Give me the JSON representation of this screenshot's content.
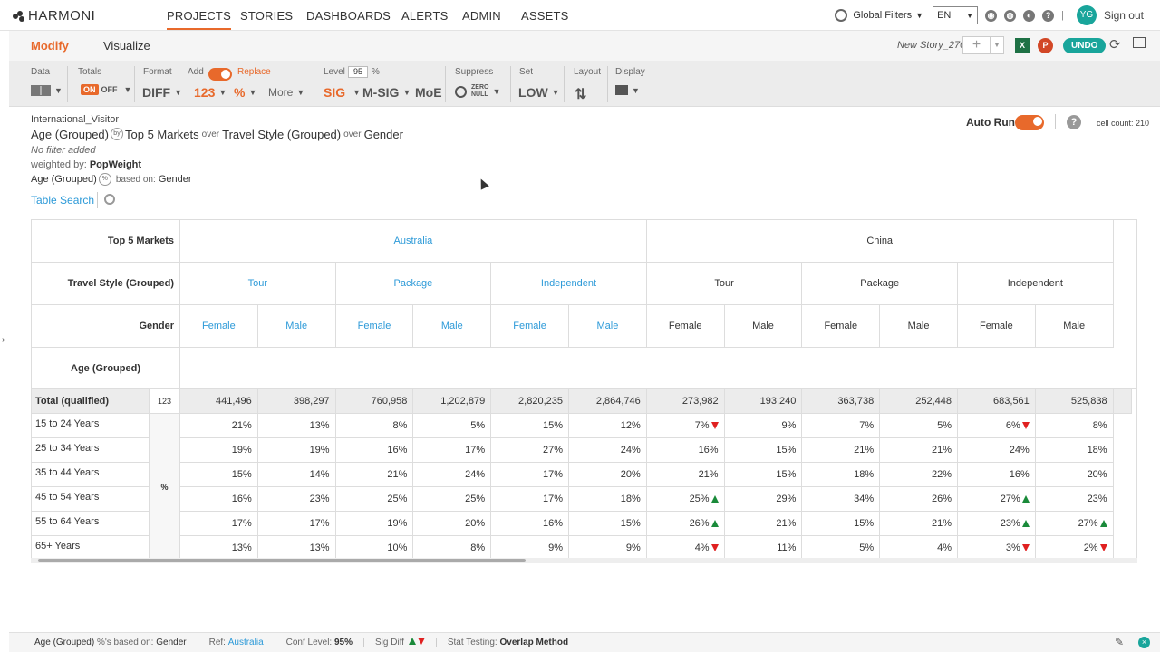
{
  "nav": {
    "brand": "HARMONI",
    "items": [
      "PROJECTS",
      "STORIES",
      "DASHBOARDS",
      "ALERTS",
      "ADMIN",
      "ASSETS"
    ],
    "global_filters": "Global Filters",
    "language": "EN",
    "user_initials": "YG",
    "sign_out": "Sign out"
  },
  "subbar": {
    "tabs": [
      "Modify",
      "Visualize"
    ],
    "story_name": "New Story_270",
    "undo": "UNDO"
  },
  "toolbar": {
    "data": "Data",
    "totals": "Totals",
    "on": "ON",
    "off": "OFF",
    "format": "Format",
    "add": "Add",
    "replace": "Replace",
    "diff": "DIFF",
    "num": "123",
    "pct": "%",
    "more": "More",
    "level": "Level",
    "level_value": "95",
    "level_unit": "%",
    "sig": "SIG",
    "msig": "M-SIG",
    "moe": "MoE",
    "suppress": "Suppress",
    "zero": "ZERO",
    "null": "NULL",
    "set": "Set",
    "low": "LOW",
    "layout": "Layout",
    "display": "Display"
  },
  "info": {
    "dataset": "International_Visitor",
    "row_var": "Age (Grouped)",
    "col1": "Top 5 Markets",
    "over": "over",
    "col2": "Travel Style (Grouped)",
    "col3": "Gender",
    "no_filter": "No filter added",
    "weighted_label": "weighted by:",
    "weight": "PopWeight",
    "based_row": "Age (Grouped)",
    "based_label": "based on:",
    "based_on": "Gender",
    "table_search": "Table Search",
    "auto_run": "Auto Run",
    "cell_count": "cell count: 210",
    "by_icon": "by",
    "pct_icon": "%"
  },
  "table": {
    "hdr_markets": "Top 5 Markets",
    "hdr_travel": "Travel Style (Grouped)",
    "hdr_gender": "Gender",
    "hdr_age": "Age (Grouped)",
    "markets": [
      "Australia",
      "China"
    ],
    "styles": [
      "Tour",
      "Package",
      "Independent",
      "Tour",
      "Package",
      "Independent"
    ],
    "genders": [
      "Female",
      "Male",
      "Female",
      "Male",
      "Female",
      "Male",
      "Female",
      "Male",
      "Female",
      "Male",
      "Female",
      "Male"
    ],
    "total_label": "Total (qualified)",
    "total_code": "123",
    "pct_label": "%",
    "totals": [
      "441,496",
      "398,297",
      "760,958",
      "1,202,879",
      "2,820,235",
      "2,864,746",
      "273,982",
      "193,240",
      "363,738",
      "252,448",
      "683,561",
      "525,838"
    ],
    "rows": [
      {
        "label": "15 to 24 Years",
        "values": [
          "21%",
          "13%",
          "8%",
          "5%",
          "15%",
          "12%",
          "7%",
          "9%",
          "7%",
          "5%",
          "6%",
          "8%"
        ],
        "sig": [
          "",
          "",
          "",
          "",
          "",
          "",
          "down",
          "",
          "",
          "",
          "down",
          ""
        ]
      },
      {
        "label": "25 to 34 Years",
        "values": [
          "19%",
          "19%",
          "16%",
          "17%",
          "27%",
          "24%",
          "16%",
          "15%",
          "21%",
          "21%",
          "24%",
          "18%"
        ],
        "sig": [
          "",
          "",
          "",
          "",
          "",
          "",
          "",
          "",
          "",
          "",
          "",
          ""
        ]
      },
      {
        "label": "35 to 44 Years",
        "values": [
          "15%",
          "14%",
          "21%",
          "24%",
          "17%",
          "20%",
          "21%",
          "15%",
          "18%",
          "22%",
          "16%",
          "20%"
        ],
        "sig": [
          "",
          "",
          "",
          "",
          "",
          "",
          "",
          "",
          "",
          "",
          "",
          ""
        ]
      },
      {
        "label": "45 to 54 Years",
        "values": [
          "16%",
          "23%",
          "25%",
          "25%",
          "17%",
          "18%",
          "25%",
          "29%",
          "34%",
          "26%",
          "27%",
          "23%"
        ],
        "sig": [
          "",
          "",
          "",
          "",
          "",
          "",
          "up",
          "",
          "",
          "",
          "up",
          ""
        ]
      },
      {
        "label": "55 to 64 Years",
        "values": [
          "17%",
          "17%",
          "19%",
          "20%",
          "16%",
          "15%",
          "26%",
          "21%",
          "15%",
          "21%",
          "23%",
          "27%"
        ],
        "sig": [
          "",
          "",
          "",
          "",
          "",
          "",
          "up",
          "",
          "",
          "",
          "up",
          "up"
        ]
      },
      {
        "label": "65+ Years",
        "values": [
          "13%",
          "13%",
          "10%",
          "8%",
          "9%",
          "9%",
          "4%",
          "11%",
          "5%",
          "4%",
          "3%",
          "2%"
        ],
        "sig": [
          "",
          "",
          "",
          "",
          "",
          "",
          "down",
          "",
          "",
          "",
          "down",
          "down"
        ]
      }
    ]
  },
  "footer": {
    "row": "Age (Grouped)",
    "based": "%'s based on:",
    "based_val": "Gender",
    "ref": "Ref:",
    "ref_val": "Australia",
    "conf": "Conf Level:",
    "conf_val": "95%",
    "sig": "Sig Diff",
    "stat": "Stat Testing:",
    "stat_val": "Overlap Method"
  }
}
